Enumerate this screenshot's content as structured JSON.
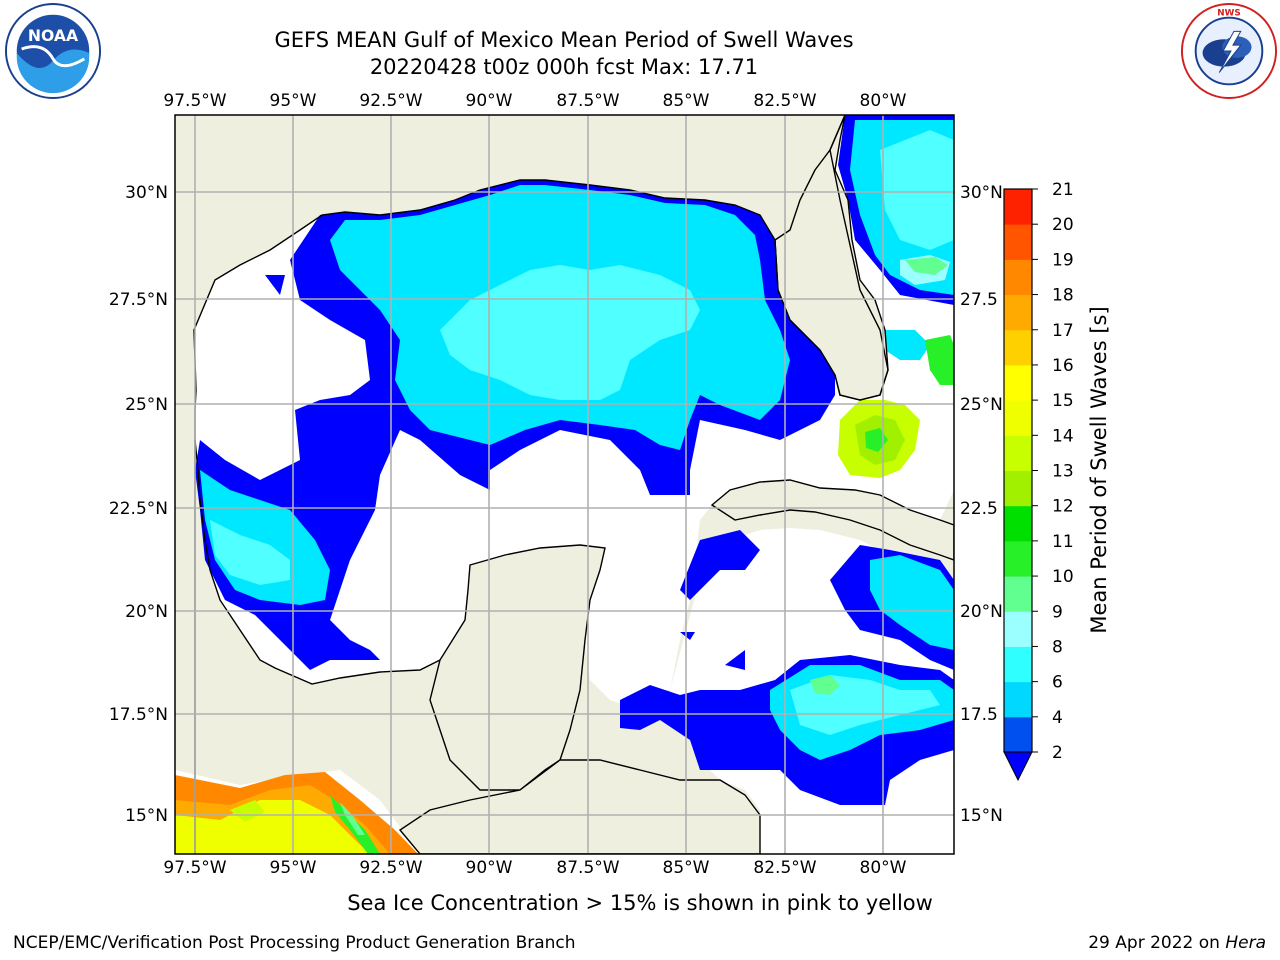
{
  "title": {
    "line1": "GEFS MEAN Gulf of Mexico Mean Period of Swell Waves",
    "line2": "20220428 t00z 000h fcst   Max: 17.71"
  },
  "logos": {
    "left": {
      "icon": "noaa-logo-icon",
      "text": "NOAA",
      "ring_text": "NATIONAL OCEANIC AND ATMOSPHERIC ADMINISTRATION · U.S. DEPARTMENT OF COMMERCE"
    },
    "right": {
      "icon": "national-weather-service-logo-icon",
      "ring_text": "NATIONAL WEATHER SERVICE"
    }
  },
  "map": {
    "lon_labels": [
      "97.5°W",
      "95°W",
      "92.5°W",
      "90°W",
      "87.5°W",
      "85°W",
      "82.5°W",
      "80°W"
    ],
    "lat_labels_left": [
      "30°N",
      "27.5°N",
      "25°N",
      "22.5°N",
      "20°N",
      "17.5°N",
      "15°N"
    ],
    "lat_labels_right": [
      "30°N",
      "27.5",
      "25°N",
      "22.5",
      "20°N",
      "17.5",
      "15°N"
    ],
    "colors": {
      "land": "#efefdf",
      "ocean_low": "#ffffff",
      "grid": "#b0b0b0",
      "coast": "#000000"
    }
  },
  "colorbar": {
    "label": "Mean Period of Swell Waves [s]",
    "ticks": [
      "21",
      "20",
      "19",
      "18",
      "17",
      "16",
      "15",
      "14",
      "13",
      "12",
      "11",
      "10",
      "9",
      "8",
      "6",
      "4",
      "2"
    ],
    "levels": [
      2,
      4,
      6,
      8,
      9,
      10,
      11,
      12,
      13,
      14,
      15,
      16,
      17,
      18,
      19,
      20,
      21
    ],
    "colors": [
      "#0050f0",
      "#00d8ff",
      "#30ffff",
      "#9cffff",
      "#60ff90",
      "#28f028",
      "#00e000",
      "#a0f000",
      "#c8ff00",
      "#f0ff00",
      "#ffff00",
      "#ffd000",
      "#ffaa00",
      "#ff8800",
      "#ff5500",
      "#ff2200"
    ],
    "extend_min_color": "#0000ff"
  },
  "caption": "Sea Ice Concentration > 15% is shown in pink to yellow",
  "footer": {
    "left": "NCEP/EMC/Verification Post Processing Product Generation Branch",
    "right_prefix": "29 Apr 2022 on ",
    "right_machine": "Hera"
  }
}
